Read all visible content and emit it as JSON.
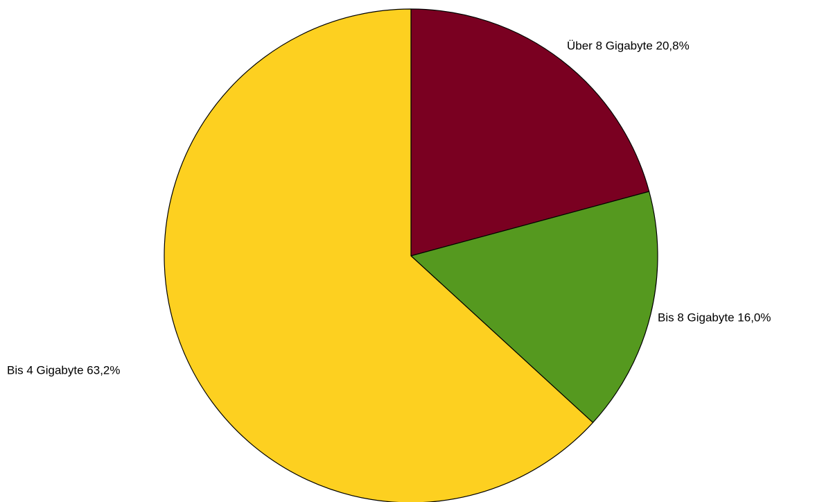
{
  "chart_data": {
    "type": "pie",
    "title": "",
    "slices": [
      {
        "label": "Über 8 Gigabyte 20,8%",
        "category": "Über 8 Gigabyte",
        "value": 20.8,
        "color": "#7a0021"
      },
      {
        "label": "Bis 8 Gigabyte 16,0%",
        "category": "Bis 8 Gigabyte",
        "value": 16.0,
        "color": "#55991f"
      },
      {
        "label": "Bis 4 Gigabyte 63,2%",
        "category": "Bis 4 Gigabyte",
        "value": 63.2,
        "color": "#fdd020"
      }
    ],
    "start_angle": "12 o'clock",
    "direction": "clockwise",
    "legend": "none",
    "labels": "outside slices"
  }
}
